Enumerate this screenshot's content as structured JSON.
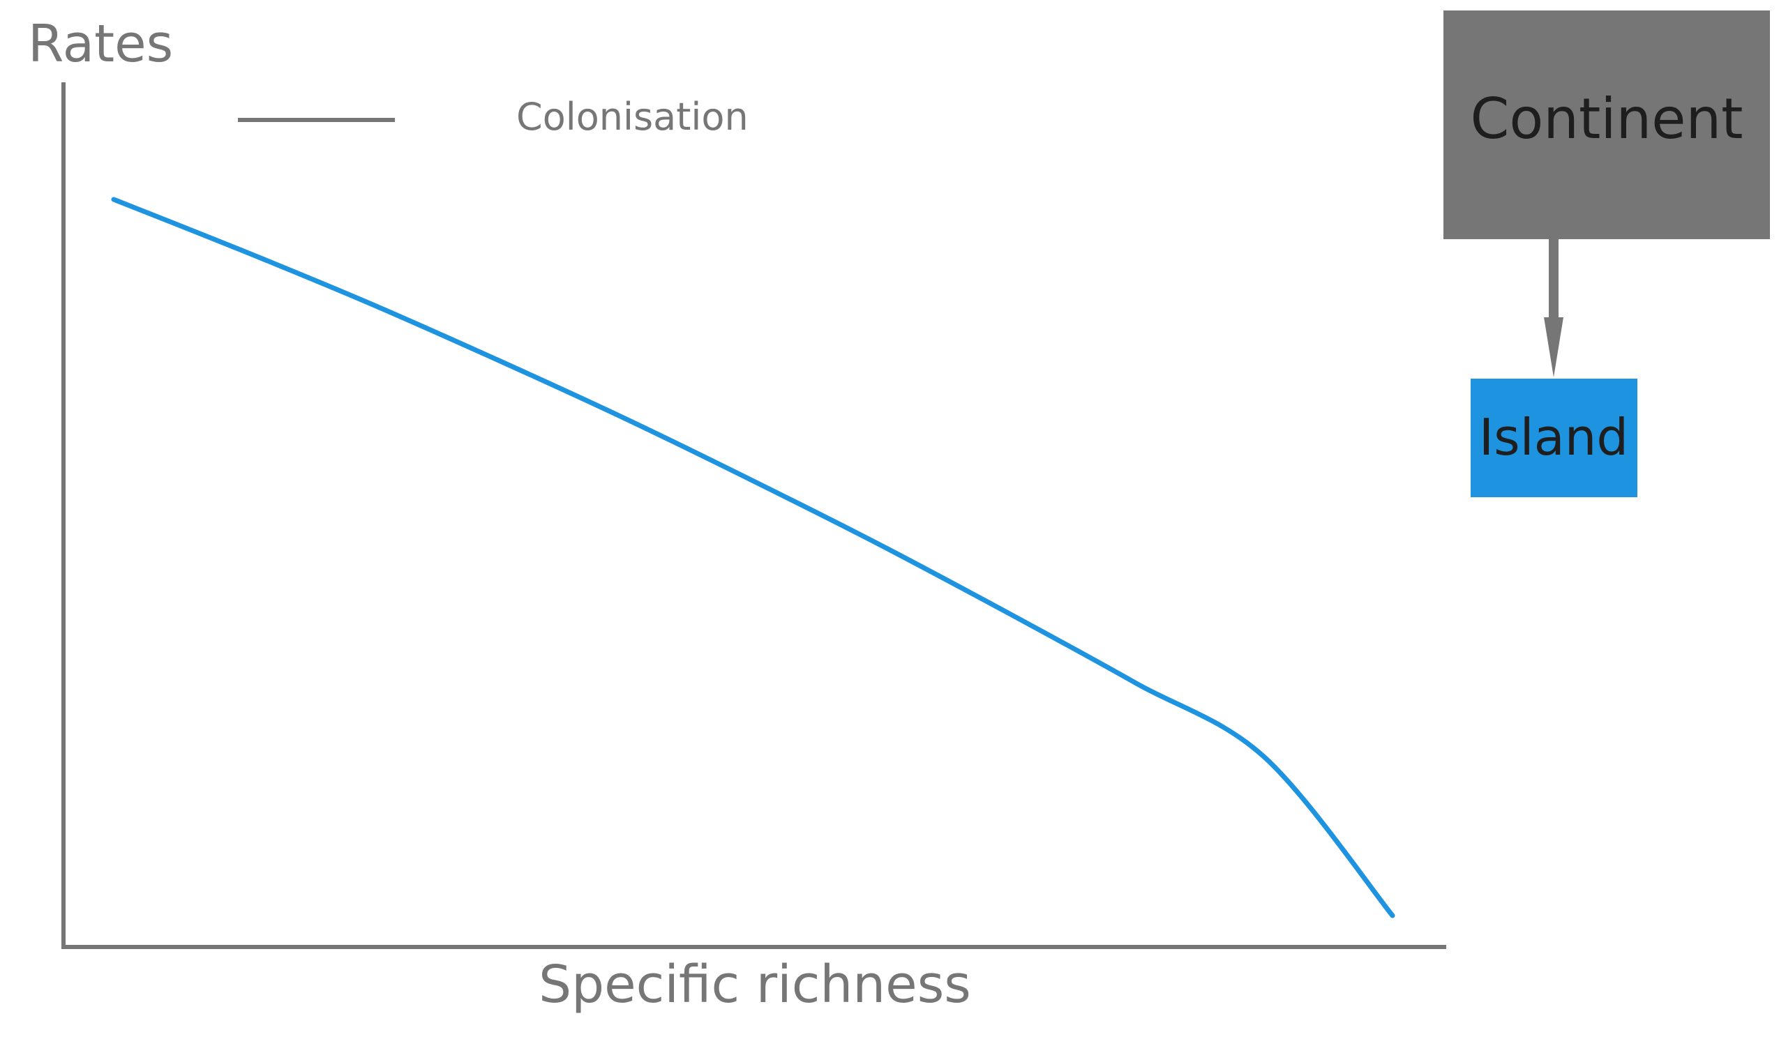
{
  "chart_data": {
    "type": "line",
    "title": "",
    "ylabel": "Rates",
    "xlabel": "Specific richness",
    "xlim": [
      0,
      1
    ],
    "ylim": [
      0,
      1
    ],
    "grid": false,
    "legend": {
      "placement": "top-left",
      "entries": [
        {
          "label": "Colonisation",
          "color": "#767676"
        }
      ]
    },
    "series": [
      {
        "name": "Colonisation",
        "color": "#1e93e0",
        "x": [
          0.0,
          0.1,
          0.2,
          0.3,
          0.4,
          0.5,
          0.6,
          0.7,
          0.8,
          0.9,
          1.0
        ],
        "y": [
          1.0,
          0.929,
          0.855,
          0.776,
          0.694,
          0.607,
          0.517,
          0.422,
          0.324,
          0.221,
          0.0
        ]
      }
    ]
  },
  "diagram": {
    "source": {
      "label": "Continent",
      "color": "#767676"
    },
    "target": {
      "label": "Island",
      "color": "#1e93e0"
    },
    "arrow_color": "#767676"
  },
  "colors": {
    "axis": "#767676",
    "text": "#767676",
    "node_text": "#1e1e1e"
  }
}
